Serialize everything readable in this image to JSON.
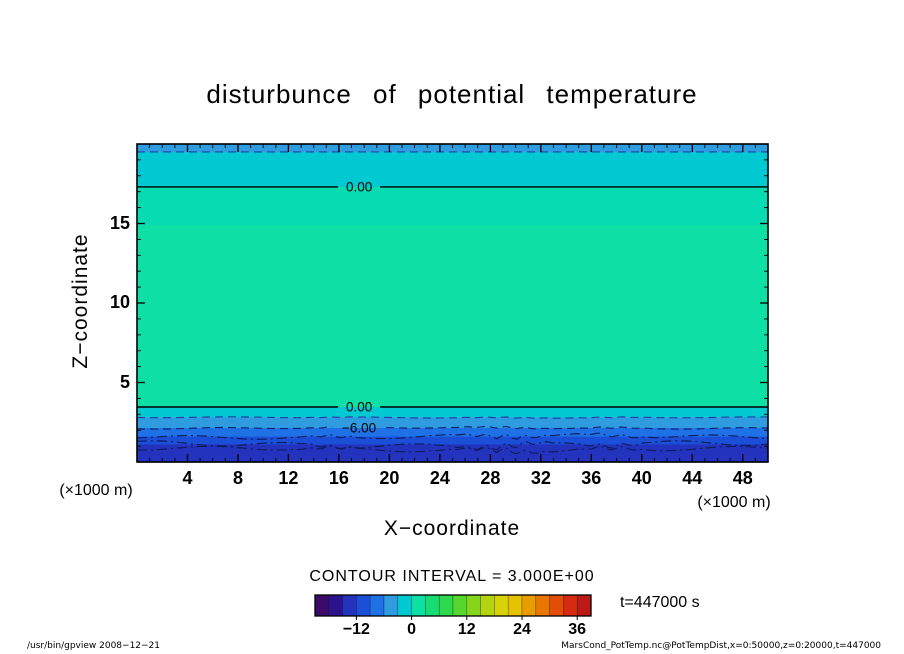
{
  "chart_data": {
    "type": "heatmap",
    "title": "disturbunce of potential temperature",
    "xlabel": "X−coordinate",
    "ylabel": "Z−coordinate",
    "axis_unit_label": "(×1000 m)",
    "contour_interval_label": "CONTOUR INTERVAL = 3.000E+00",
    "time_label": "t=447000 s",
    "xlim": [
      0,
      50
    ],
    "ylim": [
      0,
      20
    ],
    "x_ticks": [
      4,
      8,
      12,
      16,
      20,
      24,
      28,
      32,
      36,
      40,
      44,
      48
    ],
    "y_ticks": [
      5,
      10,
      15
    ],
    "x_minor_step": 1,
    "y_minor_step": 1,
    "contour_interval": 3.0,
    "contour_label_x": 17.6,
    "bands": [
      {
        "z_top": 20.0,
        "z_bottom": 19.5,
        "color": "#2f9ce0",
        "value_range": "-6 to -3"
      },
      {
        "z_top": 19.5,
        "z_bottom": 17.3,
        "color": "#00c9d2",
        "value_range": "-3 to 0"
      },
      {
        "z_top": 17.3,
        "z_bottom": 14.9,
        "color": "#06dbb2",
        "value_range": "0 to 3"
      },
      {
        "z_top": 14.9,
        "z_bottom": 3.46,
        "color": "#0ddfa5",
        "value_range": "0 to 3"
      },
      {
        "z_top": 3.46,
        "z_bottom": 2.8,
        "color": "#00c9d2",
        "value_range": "-3 to 0"
      },
      {
        "z_top": 2.8,
        "z_bottom": 2.14,
        "color": "#2f9ce0",
        "value_range": "-6 to -3"
      },
      {
        "z_top": 2.14,
        "z_bottom": 1.6,
        "color": "#1f72e6",
        "value_range": "-9 to -6"
      },
      {
        "z_top": 1.6,
        "z_bottom": 1.1,
        "color": "#1b4fd8",
        "value_range": "-12 to -9"
      },
      {
        "z_top": 1.1,
        "z_bottom": 0.0,
        "color": "#2333bd",
        "value_range": "below -12"
      }
    ],
    "contour_lines": [
      {
        "z": 19.5,
        "style": "dashed",
        "color": "#1d3fa6",
        "wiggle": 0
      },
      {
        "z": 17.3,
        "style": "solid",
        "color": "#000000",
        "label": "0.00",
        "wiggle": 0
      },
      {
        "z": 3.46,
        "style": "solid",
        "color": "#000000",
        "label": "0.00",
        "wiggle": 0
      },
      {
        "z": 2.8,
        "style": "dashed",
        "color": "#1d3fa6",
        "wiggle": 0.4
      },
      {
        "z": 2.14,
        "style": "dashed",
        "color": "#10246e",
        "label": "−6.00",
        "wiggle": 0.7
      },
      {
        "z": 1.6,
        "style": "dashdot",
        "color": "#0d1d5c",
        "wiggle": 1.6
      },
      {
        "z": 1.1,
        "style": "dashdot",
        "color": "#0d1d5c",
        "wiggle": 2.2
      },
      {
        "z": 0.8,
        "style": "dashdot",
        "color": "#0d1d5c",
        "wiggle": 1.8
      }
    ],
    "colorbar": {
      "value_min": -21,
      "value_max": 39,
      "cell_step": 3,
      "ticks": [
        -12,
        0,
        12,
        24,
        36
      ],
      "colors": [
        "#3c0a69",
        "#2c128f",
        "#2333bd",
        "#1b4fd8",
        "#1f72e6",
        "#2f9ce0",
        "#00c9d2",
        "#0ddfa5",
        "#17dc74",
        "#2ed94e",
        "#55d72e",
        "#85d51c",
        "#b3d410",
        "#d8d304",
        "#e6c100",
        "#e89e00",
        "#e87600",
        "#e44d06",
        "#d62b10",
        "#bd1a17"
      ]
    }
  },
  "footer": {
    "command": "/usr/bin/gpview  2008−12−21",
    "dataset": "MarsCond_PotTemp.nc@PotTempDist,x=0:50000,z=0:20000,t=447000"
  }
}
